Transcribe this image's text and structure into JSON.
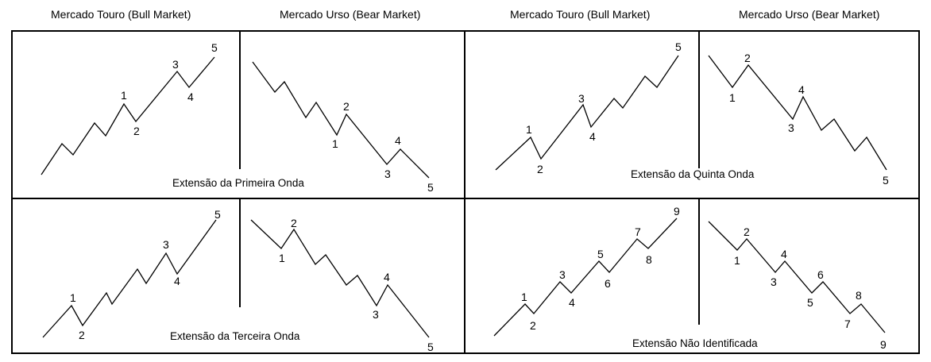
{
  "headers": [
    "Mercado Touro (Bull Market)",
    "Mercado Urso (Bear Market)",
    "Mercado Touro (Bull Market)",
    "Mercado Urso (Bear Market)"
  ],
  "panels": [
    {
      "caption": "Extensão da Primeira Onda",
      "bull_labels": [
        "1",
        "2",
        "3",
        "4",
        "5"
      ],
      "bear_labels": [
        "1",
        "2",
        "3",
        "4",
        "5"
      ]
    },
    {
      "caption": "Extensão da Quinta Onda",
      "bull_labels": [
        "1",
        "2",
        "3",
        "4",
        "5"
      ],
      "bear_labels": [
        "1",
        "2",
        "3",
        "4",
        "5"
      ]
    },
    {
      "caption": "Extensão da Terceira Onda",
      "bull_labels": [
        "1",
        "2",
        "3",
        "4",
        "5"
      ],
      "bear_labels": [
        "1",
        "2",
        "3",
        "4",
        "5"
      ]
    },
    {
      "caption": "Extensão Não Identificada",
      "bull_labels": [
        "1",
        "2",
        "3",
        "4",
        "5",
        "6",
        "7",
        "8",
        "9"
      ],
      "bear_labels": [
        "1",
        "2",
        "3",
        "4",
        "5",
        "6",
        "7",
        "8",
        "9"
      ]
    }
  ]
}
